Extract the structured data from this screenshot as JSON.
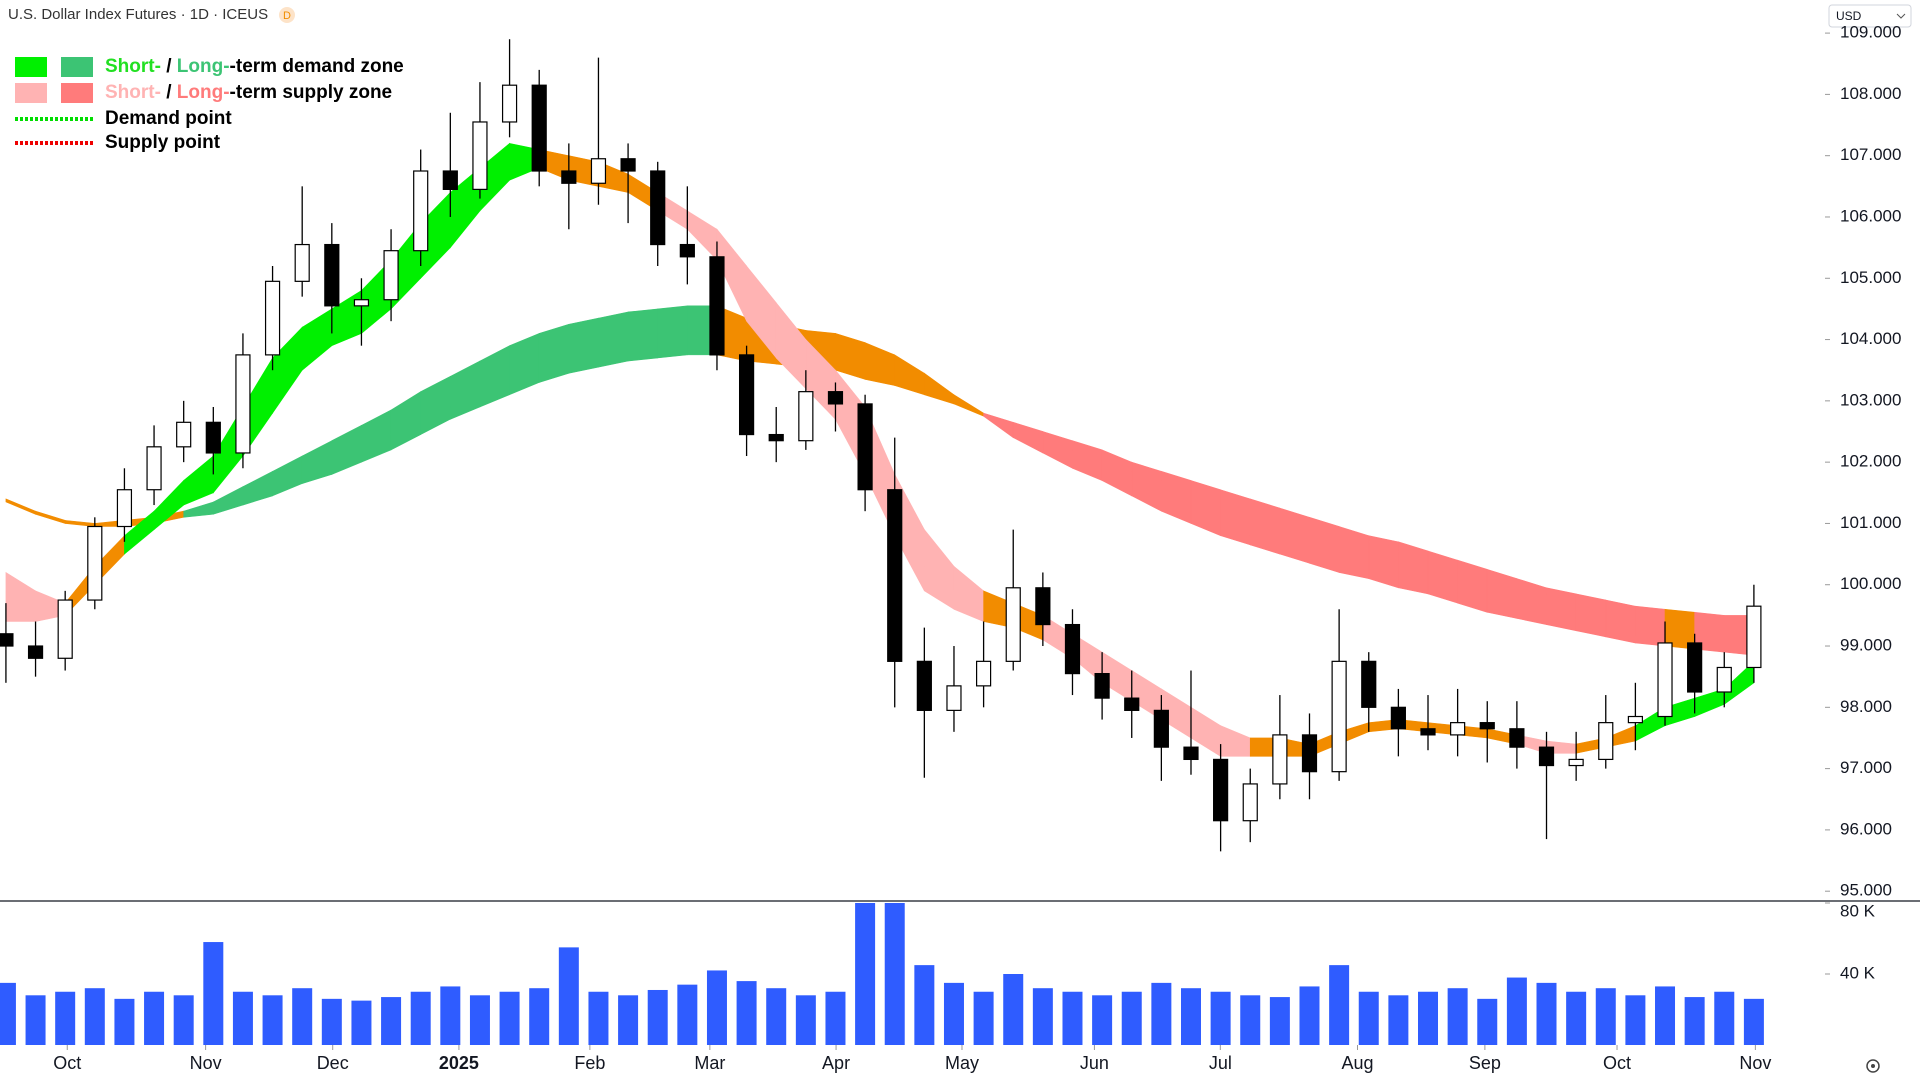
{
  "header": {
    "title": "U.S. Dollar Index Futures · 1D · ICEUS",
    "badge": "D",
    "currency": "USD"
  },
  "legend": [
    {
      "swatches": [
        "#00f000",
        "#3cc474"
      ],
      "parts": [
        {
          "text": "Short-",
          "color": "#22e022"
        },
        {
          "text": " / ",
          "color": "#000000"
        },
        {
          "text": "Long-",
          "color": "#3cc474"
        },
        {
          "text": "-term demand zone",
          "color": "#000000"
        }
      ]
    },
    {
      "swatches": [
        "#ffb3b3",
        "#ff7b7b"
      ],
      "parts": [
        {
          "text": "Short-",
          "color": "#ffb3b3"
        },
        {
          "text": " / ",
          "color": "#000000"
        },
        {
          "text": "Long-",
          "color": "#ff7b7b"
        },
        {
          "text": "-term supply zone",
          "color": "#000000"
        }
      ]
    },
    {
      "dash_color": "#00dd00",
      "parts": [
        {
          "text": "Demand point",
          "color": "#000000"
        }
      ]
    },
    {
      "dash_color": "#ee0000",
      "parts": [
        {
          "text": "Supply point",
          "color": "#000000"
        }
      ]
    }
  ],
  "chart_data": {
    "type": "candlestick",
    "up_color": "#ffffff",
    "down_color": "#000000",
    "wick_color": "#000000",
    "open": [
      99.2,
      99.0,
      98.8,
      99.75,
      100.95,
      101.55,
      102.25,
      102.65,
      102.15,
      103.75,
      104.95,
      105.55,
      104.55,
      104.65,
      105.45,
      106.75,
      106.45,
      107.55,
      108.15,
      106.75,
      106.55,
      106.95,
      106.75,
      105.55,
      105.35,
      103.75,
      102.45,
      102.35,
      103.15,
      102.95,
      101.55,
      98.75,
      97.95,
      98.35,
      98.75,
      99.95,
      99.35,
      98.55,
      98.15,
      97.95,
      97.35,
      97.15,
      96.15,
      96.75,
      97.55,
      96.95,
      98.75,
      98.0,
      97.65,
      97.55,
      97.75,
      97.65,
      97.35,
      97.05,
      97.15,
      97.75,
      97.85,
      99.05,
      98.25,
      98.65
    ],
    "high": [
      99.7,
      99.4,
      99.9,
      101.1,
      101.9,
      102.6,
      103.0,
      102.9,
      104.1,
      105.2,
      106.5,
      105.9,
      105.0,
      105.8,
      107.1,
      107.7,
      108.2,
      108.9,
      108.4,
      107.2,
      108.6,
      107.2,
      106.9,
      106.5,
      105.6,
      103.9,
      102.9,
      103.5,
      103.3,
      103.1,
      102.4,
      99.3,
      99.0,
      99.4,
      100.9,
      100.2,
      99.6,
      98.9,
      98.6,
      98.2,
      98.6,
      97.4,
      97.0,
      98.2,
      97.9,
      99.6,
      98.9,
      98.3,
      98.2,
      98.3,
      98.1,
      98.1,
      97.6,
      97.6,
      98.2,
      98.4,
      99.4,
      99.2,
      98.9,
      100.0
    ],
    "low": [
      98.4,
      98.5,
      98.6,
      99.6,
      100.7,
      101.3,
      102.0,
      101.8,
      101.9,
      103.5,
      104.7,
      104.1,
      103.9,
      104.3,
      105.2,
      106.0,
      106.3,
      107.3,
      106.5,
      105.8,
      106.2,
      105.9,
      105.2,
      104.9,
      103.5,
      102.1,
      102.0,
      102.2,
      102.5,
      101.2,
      98.0,
      96.85,
      97.6,
      98.0,
      98.6,
      99.0,
      98.2,
      97.8,
      97.5,
      96.8,
      96.9,
      95.65,
      95.8,
      96.5,
      96.5,
      96.8,
      97.6,
      97.2,
      97.3,
      97.2,
      97.1,
      97.0,
      95.85,
      96.8,
      97.0,
      97.3,
      97.7,
      97.9,
      98.0,
      98.4
    ],
    "close": [
      99.0,
      98.8,
      99.75,
      100.95,
      101.55,
      102.25,
      102.65,
      102.15,
      103.75,
      104.95,
      105.55,
      104.55,
      104.65,
      105.45,
      106.75,
      106.45,
      107.55,
      108.15,
      106.75,
      106.55,
      106.95,
      106.75,
      105.55,
      105.35,
      103.75,
      102.45,
      102.35,
      103.15,
      102.95,
      101.55,
      98.75,
      97.95,
      98.35,
      98.75,
      99.95,
      99.35,
      98.55,
      98.15,
      97.95,
      97.35,
      97.15,
      96.15,
      96.75,
      97.55,
      96.95,
      98.75,
      98.0,
      97.65,
      97.55,
      97.75,
      97.65,
      97.35,
      97.05,
      97.15,
      97.75,
      97.85,
      99.05,
      98.25,
      98.65,
      99.65
    ],
    "short_band": {
      "upper": [
        100.2,
        99.9,
        99.7,
        100.3,
        100.8,
        101.2,
        101.7,
        102.1,
        102.9,
        103.7,
        104.2,
        104.5,
        104.8,
        105.3,
        105.9,
        106.4,
        106.8,
        107.2,
        107.1,
        107.0,
        106.9,
        106.7,
        106.4,
        106.1,
        105.8,
        105.2,
        104.6,
        104.0,
        103.5,
        102.9,
        101.8,
        100.9,
        100.3,
        99.9,
        99.7,
        99.5,
        99.2,
        98.9,
        98.6,
        98.3,
        98.0,
        97.7,
        97.5,
        97.5,
        97.4,
        97.6,
        97.75,
        97.8,
        97.75,
        97.7,
        97.65,
        97.55,
        97.45,
        97.4,
        97.5,
        97.7,
        98.0,
        98.15,
        98.3,
        98.75
      ],
      "lower": [
        99.4,
        99.4,
        99.5,
        100.0,
        100.5,
        100.9,
        101.3,
        101.5,
        102.1,
        102.8,
        103.5,
        103.9,
        104.1,
        104.5,
        105.0,
        105.5,
        106.1,
        106.6,
        106.8,
        106.6,
        106.5,
        106.4,
        106.1,
        105.8,
        105.3,
        104.3,
        103.7,
        103.2,
        102.7,
        101.8,
        100.8,
        99.9,
        99.6,
        99.4,
        99.3,
        99.1,
        98.8,
        98.4,
        98.1,
        97.8,
        97.5,
        97.2,
        97.2,
        97.2,
        97.2,
        97.4,
        97.6,
        97.65,
        97.6,
        97.55,
        97.5,
        97.4,
        97.25,
        97.25,
        97.35,
        97.45,
        97.7,
        97.85,
        98.05,
        98.4
      ],
      "colors": [
        "#ffb3b3",
        "#ffb3b3",
        "#f28c00",
        "#f28c00",
        "#00f000",
        "#00f000",
        "#00f000",
        "#00f000",
        "#00f000",
        "#00f000",
        "#00f000",
        "#00f000",
        "#00f000",
        "#00f000",
        "#00f000",
        "#00f000",
        "#00f000",
        "#00f000",
        "#f28c00",
        "#f28c00",
        "#f28c00",
        "#f28c00",
        "#ffb3b3",
        "#ffb3b3",
        "#ffb3b3",
        "#ffb3b3",
        "#ffb3b3",
        "#ffb3b3",
        "#ffb3b3",
        "#ffb3b3",
        "#ffb3b3",
        "#ffb3b3",
        "#ffb3b3",
        "#f28c00",
        "#f28c00",
        "#ffb3b3",
        "#ffb3b3",
        "#ffb3b3",
        "#ffb3b3",
        "#ffb3b3",
        "#ffb3b3",
        "#ffb3b3",
        "#f28c00",
        "#f28c00",
        "#f28c00",
        "#f28c00",
        "#f28c00",
        "#f28c00",
        "#f28c00",
        "#f28c00",
        "#f28c00",
        "#ffb3b3",
        "#ffb3b3",
        "#f28c00",
        "#f28c00",
        "#00f000",
        "#00f000",
        "#00f000",
        "#00f000",
        "#00f000"
      ]
    },
    "long_band": {
      "upper": [
        101.4,
        101.2,
        101.05,
        101.0,
        101.05,
        101.1,
        101.2,
        101.35,
        101.6,
        101.85,
        102.1,
        102.35,
        102.6,
        102.85,
        103.15,
        103.4,
        103.65,
        103.9,
        104.1,
        104.25,
        104.35,
        104.45,
        104.5,
        104.55,
        104.55,
        104.35,
        104.25,
        104.15,
        104.1,
        103.95,
        103.75,
        103.45,
        103.1,
        102.8,
        102.65,
        102.5,
        102.35,
        102.2,
        102.0,
        101.85,
        101.7,
        101.55,
        101.4,
        101.25,
        101.1,
        100.95,
        100.8,
        100.7,
        100.55,
        100.4,
        100.25,
        100.1,
        99.95,
        99.85,
        99.75,
        99.65,
        99.6,
        99.55,
        99.5,
        99.5
      ],
      "lower": [
        101.35,
        101.15,
        101.0,
        100.95,
        100.95,
        101.0,
        101.1,
        101.15,
        101.3,
        101.45,
        101.65,
        101.8,
        102.0,
        102.2,
        102.45,
        102.7,
        102.9,
        103.1,
        103.3,
        103.45,
        103.55,
        103.65,
        103.7,
        103.75,
        103.75,
        103.65,
        103.6,
        103.55,
        103.5,
        103.35,
        103.25,
        103.1,
        102.95,
        102.75,
        102.4,
        102.15,
        101.9,
        101.7,
        101.45,
        101.2,
        101.0,
        100.8,
        100.65,
        100.5,
        100.35,
        100.2,
        100.1,
        99.95,
        99.85,
        99.7,
        99.55,
        99.45,
        99.35,
        99.25,
        99.15,
        99.05,
        99.0,
        98.95,
        98.9,
        98.85
      ],
      "colors": [
        "#f28c00",
        "#f28c00",
        "#f28c00",
        "#f28c00",
        "#f28c00",
        "#f28c00",
        "#3cc474",
        "#3cc474",
        "#3cc474",
        "#3cc474",
        "#3cc474",
        "#3cc474",
        "#3cc474",
        "#3cc474",
        "#3cc474",
        "#3cc474",
        "#3cc474",
        "#3cc474",
        "#3cc474",
        "#3cc474",
        "#3cc474",
        "#3cc474",
        "#3cc474",
        "#3cc474",
        "#f28c00",
        "#f28c00",
        "#f28c00",
        "#f28c00",
        "#f28c00",
        "#f28c00",
        "#f28c00",
        "#f28c00",
        "#f28c00",
        "#ff7b7b",
        "#ff7b7b",
        "#ff7b7b",
        "#ff7b7b",
        "#ff7b7b",
        "#ff7b7b",
        "#ff7b7b",
        "#ff7b7b",
        "#ff7b7b",
        "#ff7b7b",
        "#ff7b7b",
        "#ff7b7b",
        "#ff7b7b",
        "#ff7b7b",
        "#ff7b7b",
        "#ff7b7b",
        "#ff7b7b",
        "#ff7b7b",
        "#ff7b7b",
        "#ff7b7b",
        "#ff7b7b",
        "#ff7b7b",
        "#ff7b7b",
        "#f28c00",
        "#ff7b7b",
        "#ff7b7b",
        "#f28c00"
      ]
    },
    "ylim": [
      94.84,
      109.54
    ],
    "yticks": [
      {
        "value": 95,
        "label": "95.000"
      },
      {
        "value": 96,
        "label": "96.000"
      },
      {
        "value": 97,
        "label": "97.000"
      },
      {
        "value": 98,
        "label": "98.000"
      },
      {
        "value": 99,
        "label": "99.000"
      },
      {
        "value": 100,
        "label": "100.000"
      },
      {
        "value": 101,
        "label": "101.000"
      },
      {
        "value": 102,
        "label": "102.000"
      },
      {
        "value": 103,
        "label": "103.000"
      },
      {
        "value": 104,
        "label": "104.000"
      },
      {
        "value": 105,
        "label": "105.000"
      },
      {
        "value": 106,
        "label": "106.000"
      },
      {
        "value": 107,
        "label": "107.000"
      },
      {
        "value": 108,
        "label": "108.000"
      },
      {
        "value": 109,
        "label": "109.000"
      }
    ],
    "xlim": [
      -0.2,
      61.4
    ],
    "xticks": [
      {
        "value": 2.07,
        "label": "Oct"
      },
      {
        "value": 6.74,
        "label": "Nov"
      },
      {
        "value": 11.03,
        "label": "Dec"
      },
      {
        "value": 15.29,
        "label": "2025",
        "bold": true
      },
      {
        "value": 19.71,
        "label": "Feb"
      },
      {
        "value": 23.76,
        "label": "Mar"
      },
      {
        "value": 28.02,
        "label": "Apr"
      },
      {
        "value": 32.27,
        "label": "May"
      },
      {
        "value": 36.74,
        "label": "Jun"
      },
      {
        "value": 40.99,
        "label": "Jul"
      },
      {
        "value": 45.62,
        "label": "Aug"
      },
      {
        "value": 49.92,
        "label": "Sep"
      },
      {
        "value": 54.38,
        "label": "Oct"
      },
      {
        "value": 59.05,
        "label": "Nov"
      }
    ],
    "volume": {
      "color": "#2f5cff",
      "ylim": [
        0,
        80000
      ],
      "yticks": [
        {
          "value": 40000,
          "label": "40 K"
        },
        {
          "value": 80000,
          "label": "80 K"
        }
      ],
      "values": [
        35000,
        28000,
        30000,
        32000,
        26000,
        30000,
        28000,
        58000,
        30000,
        28000,
        32000,
        26000,
        25000,
        27000,
        30000,
        33000,
        28000,
        30000,
        32000,
        55000,
        30000,
        28000,
        31000,
        34000,
        42000,
        36000,
        32000,
        28000,
        30000,
        80000,
        82000,
        45000,
        35000,
        30000,
        40000,
        32000,
        30000,
        28000,
        30000,
        35000,
        32000,
        30000,
        28000,
        27000,
        33000,
        45000,
        30000,
        28000,
        30000,
        32000,
        26000,
        38000,
        35000,
        30000,
        32000,
        28000,
        33000,
        27000,
        30000,
        26000
      ]
    }
  }
}
